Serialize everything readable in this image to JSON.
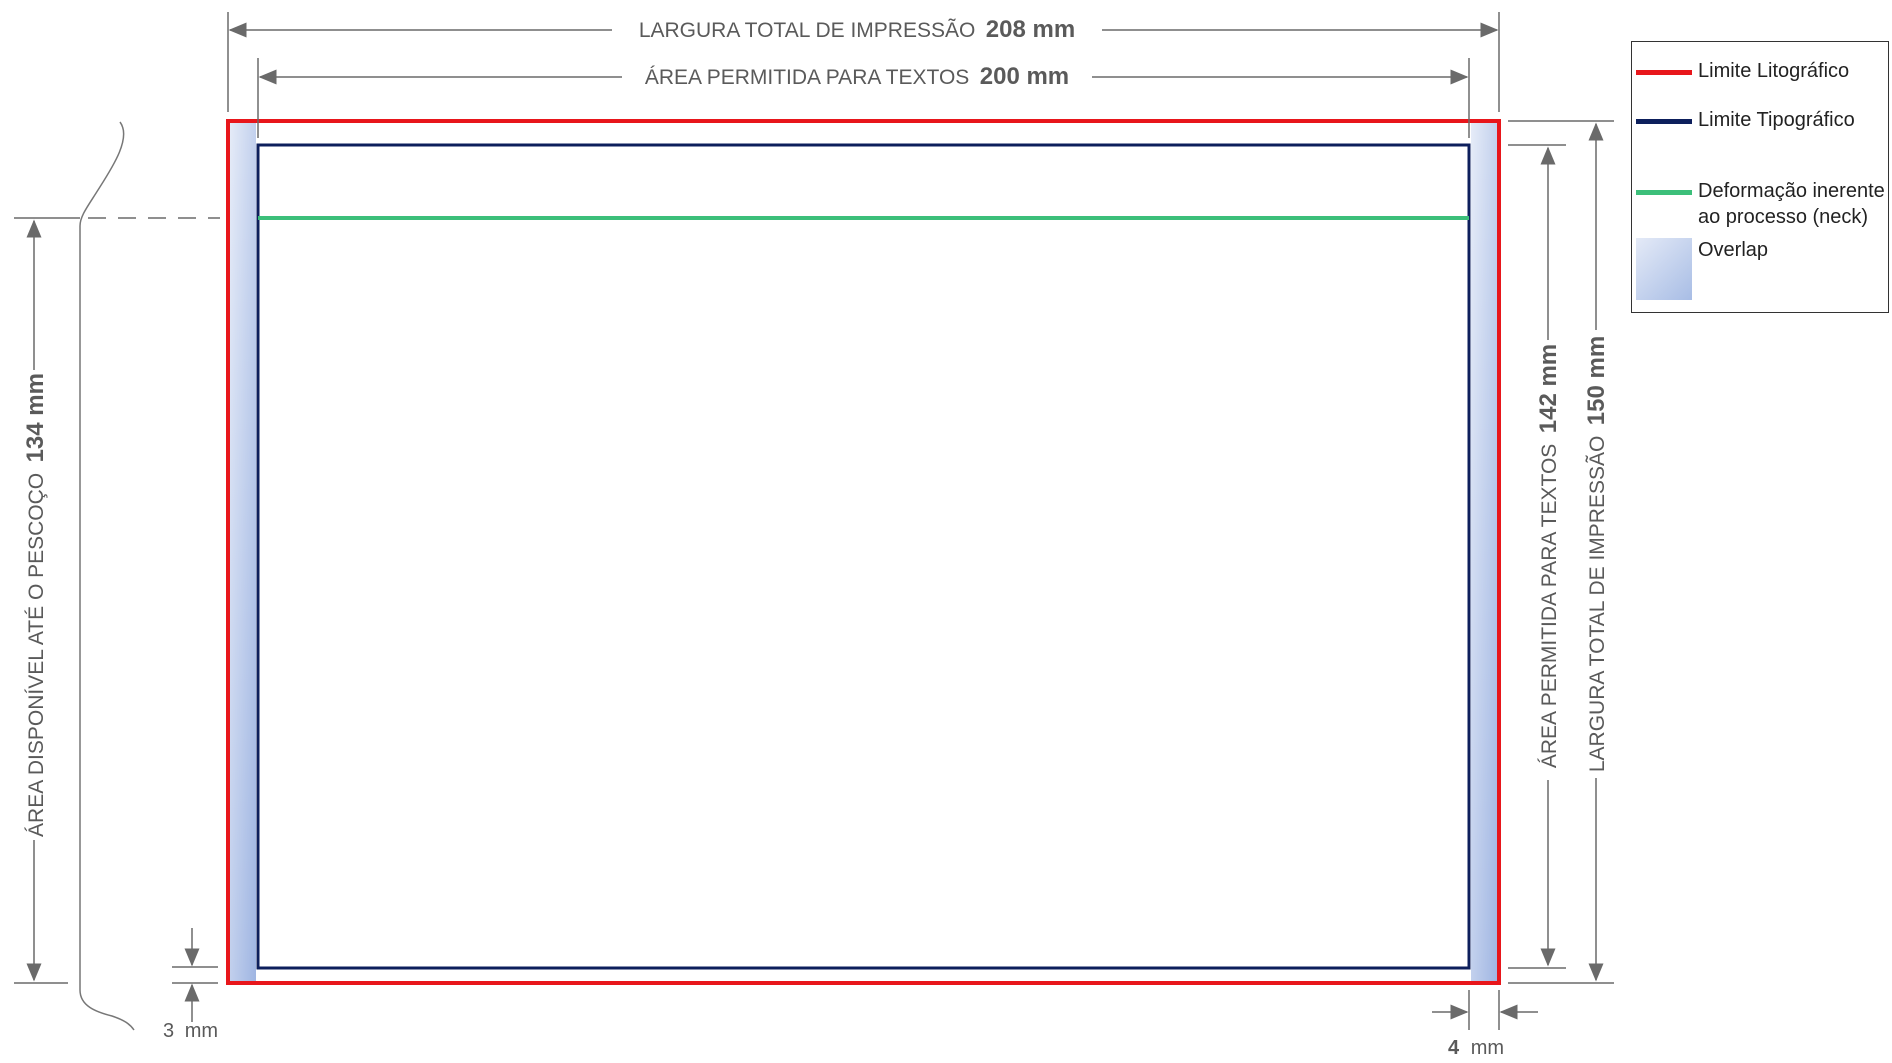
{
  "dimensions": {
    "top_total": {
      "label": "LARGURA TOTAL DE IMPRESSÃO",
      "value": "208 mm"
    },
    "top_text_area": {
      "label": "ÁREA PERMITIDA PARA TEXTOS",
      "value": "200 mm"
    },
    "left_neck": {
      "label": "ÁREA DISPONÍVEL ATÉ O PESCOÇO",
      "value": "134 mm"
    },
    "right_text_area": {
      "label": "ÁREA PERMITIDA PARA TEXTOS",
      "value": "142 mm"
    },
    "right_total": {
      "label": "LARGURA TOTAL DE IMPRESSÃO",
      "value": "150 mm"
    },
    "bottom_left_gap": {
      "number": "3",
      "unit": "mm"
    },
    "bottom_right_gap": {
      "number": "4",
      "unit": "mm"
    }
  },
  "legend": {
    "items": [
      {
        "label": "Limite Litográfico",
        "color": "#e8161b"
      },
      {
        "label": "Limite Tipográfico",
        "color": "#0d1f5c"
      },
      {
        "label": "Deformação inerente\nao processo (neck)",
        "color": "#3cbf7a"
      },
      {
        "label": "Overlap",
        "color": "#b8c8ec"
      }
    ]
  },
  "colors": {
    "litho_limit": "#e8161b",
    "typo_limit": "#0d1f5c",
    "neck": "#3cbf7a",
    "overlap": "#b8c8ec",
    "dimension_lines": "#6a6a6a"
  }
}
